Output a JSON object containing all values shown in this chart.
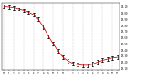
{
  "hours": [
    0,
    1,
    2,
    3,
    4,
    5,
    6,
    7,
    8,
    9,
    10,
    11,
    12,
    13,
    14,
    15,
    16,
    17,
    18,
    19,
    20,
    21,
    22,
    23
  ],
  "pressure": [
    30.11,
    30.1,
    30.09,
    30.07,
    30.05,
    30.02,
    29.98,
    29.9,
    29.78,
    29.63,
    29.5,
    29.38,
    29.28,
    29.22,
    29.18,
    29.16,
    29.15,
    29.15,
    29.17,
    29.2,
    29.23,
    29.25,
    29.27,
    29.28
  ],
  "high": [
    30.14,
    30.13,
    30.11,
    30.09,
    30.07,
    30.04,
    30.01,
    29.93,
    29.81,
    29.66,
    29.53,
    29.41,
    29.31,
    29.25,
    29.21,
    29.19,
    29.18,
    29.18,
    29.2,
    29.23,
    29.26,
    29.28,
    29.3,
    29.31
  ],
  "low": [
    30.08,
    30.07,
    30.06,
    30.05,
    30.03,
    29.99,
    29.95,
    29.87,
    29.75,
    29.6,
    29.47,
    29.35,
    29.25,
    29.19,
    29.15,
    29.13,
    29.12,
    29.12,
    29.14,
    29.17,
    29.2,
    29.22,
    29.24,
    29.25
  ],
  "line_color": "#cc0000",
  "bar_color": "#000000",
  "bg_color": "#ffffff",
  "grid_color": "#999999",
  "ylim": [
    29.08,
    30.18
  ],
  "yticks": [
    29.1,
    29.2,
    29.3,
    29.4,
    29.5,
    29.6,
    29.7,
    29.8,
    29.9,
    30.0,
    30.1
  ],
  "ytick_labels": [
    "29.10",
    "29.20",
    "29.30",
    "29.40",
    "29.50",
    "29.60",
    "29.70",
    "29.80",
    "29.90",
    "30.00",
    "30.10"
  ],
  "xtick_labels": [
    "12",
    "1",
    "2",
    "3",
    "4",
    "5",
    "6",
    "7",
    "8",
    "9",
    "10",
    "11",
    "12",
    "1",
    "2",
    "3",
    "4",
    "5",
    "6",
    "7",
    "8",
    "9",
    "10",
    "11"
  ],
  "vgrid_positions": [
    0,
    2,
    4,
    6,
    8,
    10,
    12,
    14,
    16,
    18,
    20,
    22
  ]
}
